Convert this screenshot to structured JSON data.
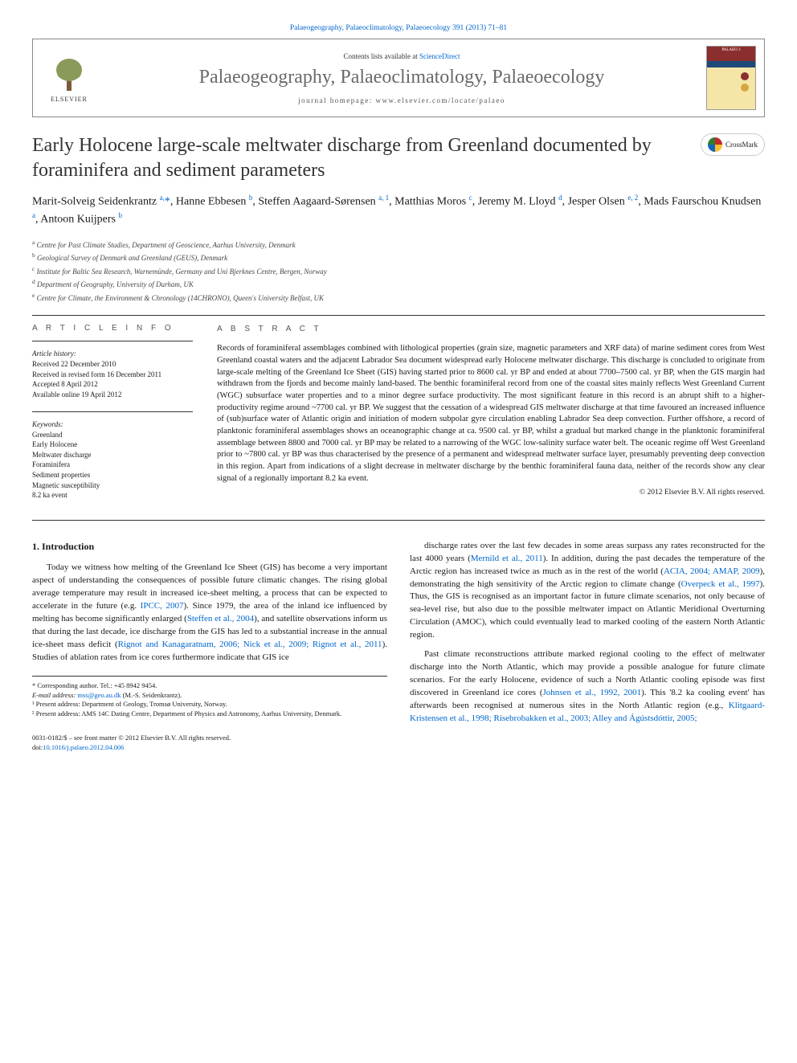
{
  "page": {
    "running_head": "Palaeogeography, Palaeoclimatology, Palaeoecology 391 (2013) 71–81",
    "contents_prefix": "Contents lists available at ",
    "contents_link": "ScienceDirect",
    "journal_name": "Palaeogeography, Palaeoclimatology, Palaeoecology",
    "homepage_label": "journal homepage: www.elsevier.com/locate/palaeo",
    "publisher": "ELSEVIER",
    "cover_label": "PALAEO 3",
    "crossmark": "CrossMark"
  },
  "article": {
    "title": "Early Holocene large-scale meltwater discharge from Greenland documented by foraminifera and sediment parameters",
    "authors_html": "Marit-Solveig Seidenkrantz <sup>a,</sup><a>*</a>, Hanne Ebbesen <sup>b</sup>, Steffen Aagaard-Sørensen <sup>a, 1</sup>, Matthias Moros <sup>c</sup>, Jeremy M. Lloyd <sup>d</sup>, Jesper Olsen <sup>e, 2</sup>, Mads Faurschou Knudsen <sup>a</sup>, Antoon Kuijpers <sup>b</sup>",
    "affiliations": [
      {
        "sup": "a",
        "text": "Centre for Past Climate Studies, Department of Geoscience, Aarhus University, Denmark"
      },
      {
        "sup": "b",
        "text": "Geological Survey of Denmark and Greenland (GEUS), Denmark"
      },
      {
        "sup": "c",
        "text": "Institute for Baltic Sea Research, Warnemünde, Germany and Uni Bjerknes Centre, Bergen, Norway"
      },
      {
        "sup": "d",
        "text": "Department of Geography, University of Durham, UK"
      },
      {
        "sup": "e",
        "text": "Centre for Climate, the Environment & Chronology (14CHRONO), Queen's University Belfast, UK"
      }
    ]
  },
  "info": {
    "heading": "A R T I C L E   I N F O",
    "history_label": "Article history:",
    "history": [
      "Received 22 December 2010",
      "Received in revised form 16 December 2011",
      "Accepted 8 April 2012",
      "Available online 19 April 2012"
    ],
    "keywords_label": "Keywords:",
    "keywords": [
      "Greenland",
      "Early Holocene",
      "Meltwater discharge",
      "Foraminifera",
      "Sediment properties",
      "Magnetic susceptibility",
      "8.2 ka event"
    ]
  },
  "abstract": {
    "heading": "A B S T R A C T",
    "text": "Records of foraminiferal assemblages combined with lithological properties (grain size, magnetic parameters and XRF data) of marine sediment cores from West Greenland coastal waters and the adjacent Labrador Sea document widespread early Holocene meltwater discharge. This discharge is concluded to originate from large-scale melting of the Greenland Ice Sheet (GIS) having started prior to 8600 cal. yr BP and ended at about 7700–7500 cal. yr BP, when the GIS margin had withdrawn from the fjords and become mainly land-based. The benthic foraminiferal record from one of the coastal sites mainly reflects West Greenland Current (WGC) subsurface water properties and to a minor degree surface productivity. The most significant feature in this record is an abrupt shift to a higher-productivity regime around ~7700 cal. yr BP. We suggest that the cessation of a widespread GIS meltwater discharge at that time favoured an increased influence of (sub)surface water of Atlantic origin and initiation of modern subpolar gyre circulation enabling Labrador Sea deep convection. Further offshore, a record of planktonic foraminiferal assemblages shows an oceanographic change at ca. 9500 cal. yr BP, whilst a gradual but marked change in the planktonic foraminiferal assemblage between 8800 and 7000 cal. yr BP may be related to a narrowing of the WGC low-salinity surface water belt. The oceanic regime off West Greenland prior to ~7800 cal. yr BP was thus characterised by the presence of a permanent and widespread meltwater surface layer, presumably preventing deep convection in this region. Apart from indications of a slight decrease in meltwater discharge by the benthic foraminiferal fauna data, neither of the records show any clear signal of a regionally important 8.2 ka event.",
    "copyright": "© 2012 Elsevier B.V. All rights reserved."
  },
  "body": {
    "section_heading": "1. Introduction",
    "col1_p1": "Today we witness how melting of the Greenland Ice Sheet (GIS) has become a very important aspect of understanding the consequences of possible future climatic changes. The rising global average temperature may result in increased ice-sheet melting, a process that can be expected to accelerate in the future (e.g. IPCC, 2007). Since 1979, the area of the inland ice influenced by melting has become significantly enlarged (Steffen et al., 2004), and satellite observations inform us that during the last decade, ice discharge from the GIS has led to a substantial increase in the annual ice-sheet mass deficit (Rignot and Kanagaratnam, 2006; Nick et al., 2009; Rignot et al., 2011). Studies of ablation rates from ice cores furthermore indicate that GIS ice",
    "col2_p1": "discharge rates over the last few decades in some areas surpass any rates reconstructed for the last 4000 years (Mernild et al., 2011). In addition, during the past decades the temperature of the Arctic region has increased twice as much as in the rest of the world (ACIA, 2004; AMAP, 2009), demonstrating the high sensitivity of the Arctic region to climate change (Overpeck et al., 1997). Thus, the GIS is recognised as an important factor in future climate scenarios, not only because of sea-level rise, but also due to the possible meltwater impact on Atlantic Meridional Overturning Circulation (AMOC), which could eventually lead to marked cooling of the eastern North Atlantic region.",
    "col2_p2": "Past climate reconstructions attribute marked regional cooling to the effect of meltwater discharge into the North Atlantic, which may provide a possible analogue for future climate scenarios. For the early Holocene, evidence of such a North Atlantic cooling episode was first discovered in Greenland ice cores (Johnsen et al., 1992, 2001). This '8.2 ka cooling event' has afterwards been recognised at numerous sites in the North Atlantic region (e.g., Klitgaard-Kristensen et al., 1998; Risebrobakken et al., 2003; Alley and Ágústsdóttir, 2005;"
  },
  "footnotes": {
    "corr": "* Corresponding author. Tel.: +45 8942 9454.",
    "email_label": "E-mail address:",
    "email": "mss@geo.au.dk",
    "email_who": "(M.-S. Seidenkrantz).",
    "fn1": "¹ Present address: Department of Geology, Tromsø University, Norway.",
    "fn2": "² Present address: AMS 14C Dating Centre, Department of Physics and Astronomy, Aarhus University, Denmark."
  },
  "bottom": {
    "issn_line": "0031-0182/$ – see front matter © 2012 Elsevier B.V. All rights reserved.",
    "doi_label": "doi:",
    "doi": "10.1016/j.palaeo.2012.04.006"
  },
  "colors": {
    "link": "#0066cc",
    "text": "#1a1a1a",
    "journal_gray": "#6a6a6a",
    "rule": "#333333",
    "cover_bg": "#f5e6a8",
    "cover_red": "#8b2e2e",
    "cover_blue": "#1e4a7a",
    "cover_gold": "#d4a740"
  },
  "typography": {
    "body_fontsize_pt": 11,
    "abstract_fontsize_pt": 10.5,
    "title_fontsize_pt": 24,
    "journal_fontsize_pt": 24,
    "authors_fontsize_pt": 14,
    "affiliations_fontsize_pt": 9,
    "footnotes_fontsize_pt": 8.5
  }
}
